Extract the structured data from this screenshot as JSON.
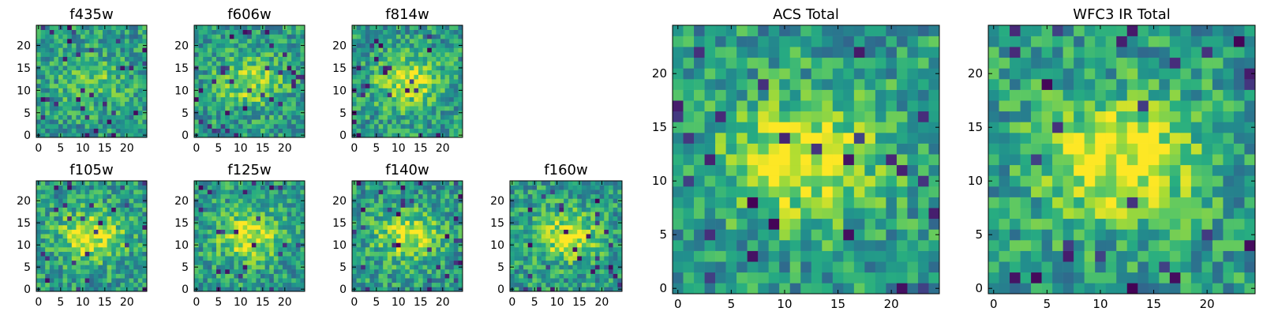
{
  "chart_data": [
    {
      "type": "heatmap",
      "title": "f435w",
      "x_ticks": [
        "0",
        "5",
        "10",
        "15",
        "20"
      ],
      "y_ticks": [
        "0",
        "5",
        "10",
        "15",
        "20"
      ],
      "xlim": [
        0,
        25
      ],
      "ylim": [
        0,
        25
      ],
      "grid": false,
      "colormap": "viridis",
      "seed": 11,
      "peak": 0.55
    },
    {
      "type": "heatmap",
      "title": "f606w",
      "x_ticks": [
        "0",
        "5",
        "10",
        "15",
        "20"
      ],
      "y_ticks": [
        "0",
        "5",
        "10",
        "15",
        "20"
      ],
      "xlim": [
        0,
        25
      ],
      "ylim": [
        0,
        25
      ],
      "grid": false,
      "colormap": "viridis",
      "seed": 23,
      "peak": 0.9
    },
    {
      "type": "heatmap",
      "title": "f814w",
      "x_ticks": [
        "0",
        "5",
        "10",
        "15",
        "20"
      ],
      "y_ticks": [
        "0",
        "5",
        "10",
        "15",
        "20"
      ],
      "xlim": [
        0,
        25
      ],
      "ylim": [
        0,
        25
      ],
      "grid": false,
      "colormap": "viridis",
      "seed": 37,
      "peak": 1.1
    },
    {
      "type": "heatmap",
      "title": "f105w",
      "x_ticks": [
        "0",
        "5",
        "10",
        "15",
        "20"
      ],
      "y_ticks": [
        "0",
        "5",
        "10",
        "15",
        "20"
      ],
      "xlim": [
        0,
        25
      ],
      "ylim": [
        0,
        25
      ],
      "grid": false,
      "colormap": "viridis",
      "seed": 41,
      "peak": 1.2
    },
    {
      "type": "heatmap",
      "title": "f125w",
      "x_ticks": [
        "0",
        "5",
        "10",
        "15",
        "20"
      ],
      "y_ticks": [
        "0",
        "5",
        "10",
        "15",
        "20"
      ],
      "xlim": [
        0,
        25
      ],
      "ylim": [
        0,
        25
      ],
      "grid": false,
      "colormap": "viridis",
      "seed": 53,
      "peak": 1.2
    },
    {
      "type": "heatmap",
      "title": "f140w",
      "x_ticks": [
        "0",
        "5",
        "10",
        "15",
        "20"
      ],
      "y_ticks": [
        "0",
        "5",
        "10",
        "15",
        "20"
      ],
      "xlim": [
        0,
        25
      ],
      "ylim": [
        0,
        25
      ],
      "grid": false,
      "colormap": "viridis",
      "seed": 67,
      "peak": 1.1
    },
    {
      "type": "heatmap",
      "title": "f160w",
      "x_ticks": [
        "0",
        "5",
        "10",
        "15",
        "20"
      ],
      "y_ticks": [
        "0",
        "5",
        "10",
        "15",
        "20"
      ],
      "xlim": [
        0,
        25
      ],
      "ylim": [
        0,
        25
      ],
      "grid": false,
      "colormap": "viridis",
      "seed": 79,
      "peak": 1.1
    },
    {
      "type": "heatmap",
      "title": "ACS Total",
      "x_ticks": [
        "0",
        "5",
        "10",
        "15",
        "20"
      ],
      "y_ticks": [
        "0",
        "5",
        "10",
        "15",
        "20"
      ],
      "xlim": [
        0,
        25
      ],
      "ylim": [
        0,
        25
      ],
      "grid": false,
      "colormap": "viridis",
      "seed": 83,
      "peak": 1.3
    },
    {
      "type": "heatmap",
      "title": "WFC3 IR Total",
      "x_ticks": [
        "0",
        "5",
        "10",
        "15",
        "20"
      ],
      "y_ticks": [
        "0",
        "5",
        "10",
        "15",
        "20"
      ],
      "xlim": [
        0,
        25
      ],
      "ylim": [
        0,
        25
      ],
      "grid": false,
      "colormap": "viridis",
      "seed": 97,
      "peak": 1.4
    }
  ]
}
